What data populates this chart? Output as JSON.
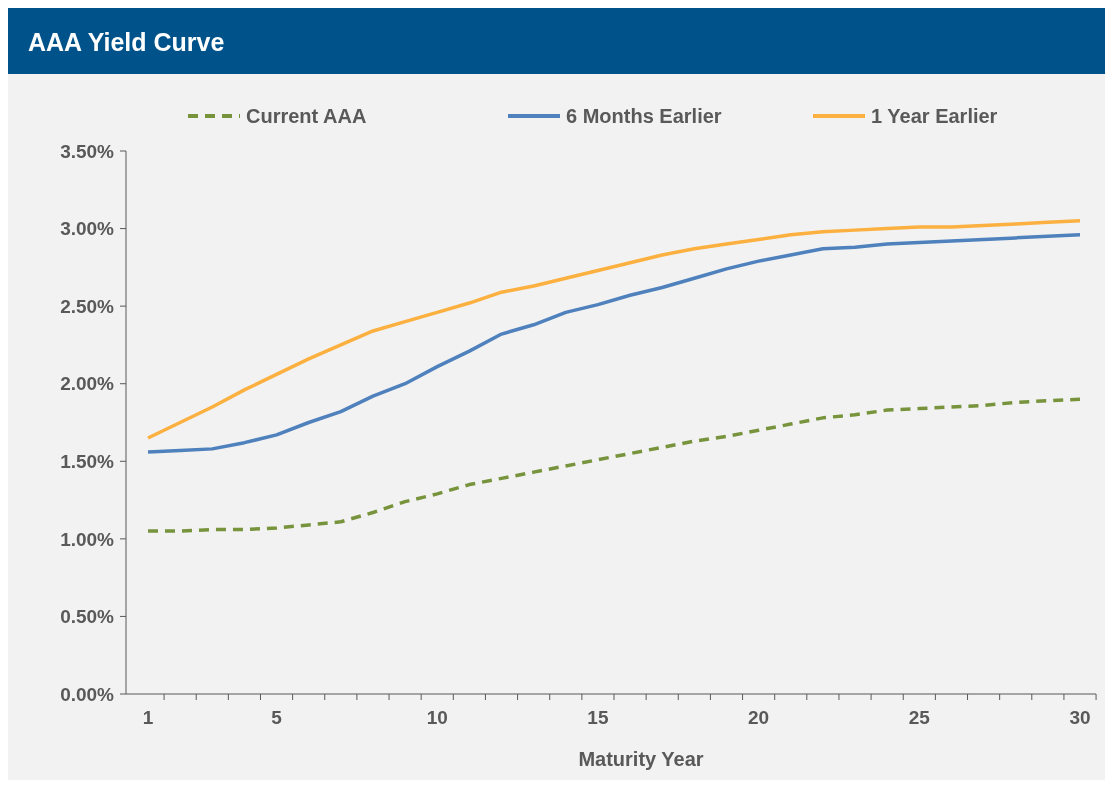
{
  "chart_data": {
    "type": "line",
    "title": "AAA Yield Curve",
    "xlabel": "Maturity Year",
    "categories": [
      "1",
      null,
      null,
      null,
      "5",
      null,
      null,
      null,
      null,
      "10",
      null,
      null,
      null,
      null,
      "15",
      null,
      null,
      null,
      null,
      "20",
      null,
      null,
      null,
      null,
      "25",
      null,
      null,
      null,
      null,
      "30"
    ],
    "ylim": [
      0,
      3.5
    ],
    "yticks": [
      {
        "value": 0,
        "label": "0.00%"
      },
      {
        "value": 0.5,
        "label": "0.50%"
      },
      {
        "value": 1,
        "label": "1.00%"
      },
      {
        "value": 1.5,
        "label": "1.50%"
      },
      {
        "value": 2,
        "label": "2.00%"
      },
      {
        "value": 2.5,
        "label": "2.50%"
      },
      {
        "value": 3,
        "label": "3.00%"
      },
      {
        "value": 3.5,
        "label": "3.50%"
      }
    ],
    "grid": false,
    "legend": "top",
    "series": [
      {
        "name": "Current AAA",
        "color": "#77933c",
        "line_style": "dashed",
        "values": [
          1.05,
          1.05,
          1.06,
          1.06,
          1.07,
          1.09,
          1.11,
          1.17,
          1.24,
          1.29,
          1.35,
          1.39,
          1.43,
          1.47,
          1.51,
          1.55,
          1.59,
          1.63,
          1.66,
          1.7,
          1.74,
          1.78,
          1.8,
          1.83,
          1.84,
          1.85,
          1.86,
          1.88,
          1.89,
          1.9
        ]
      },
      {
        "name": "6 Months Earlier",
        "color": "#4f81bd",
        "line_style": "solid",
        "values": [
          1.56,
          1.57,
          1.58,
          1.62,
          1.67,
          1.75,
          1.82,
          1.92,
          2.0,
          2.11,
          2.21,
          2.32,
          2.38,
          2.46,
          2.51,
          2.57,
          2.62,
          2.68,
          2.74,
          2.79,
          2.83,
          2.87,
          2.88,
          2.9,
          2.91,
          2.92,
          2.93,
          2.94,
          2.95,
          2.96
        ]
      },
      {
        "name": "1 Year Earlier",
        "color": "#fbb040",
        "line_style": "solid",
        "values": [
          1.65,
          1.75,
          1.85,
          1.96,
          2.06,
          2.16,
          2.25,
          2.34,
          2.4,
          2.46,
          2.52,
          2.59,
          2.63,
          2.68,
          2.73,
          2.78,
          2.83,
          2.87,
          2.9,
          2.93,
          2.96,
          2.98,
          2.99,
          3.0,
          3.01,
          3.01,
          3.02,
          3.03,
          3.04,
          3.05
        ]
      }
    ]
  }
}
